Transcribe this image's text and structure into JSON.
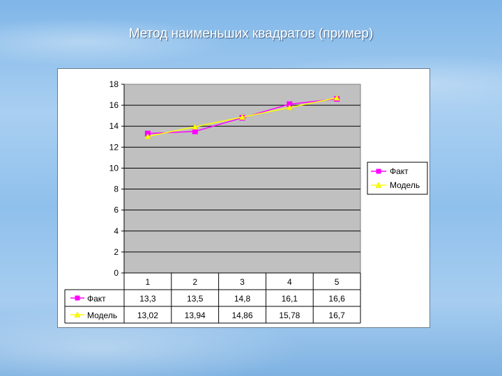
{
  "slide": {
    "title": "Метод наименьших квадратов (пример)"
  },
  "chart_data": {
    "type": "line",
    "title": "",
    "xlabel": "",
    "ylabel": "",
    "categories": [
      "1",
      "2",
      "3",
      "4",
      "5"
    ],
    "ylim": [
      0,
      18
    ],
    "yticks": [
      "0",
      "2",
      "4",
      "6",
      "8",
      "10",
      "12",
      "14",
      "16",
      "18"
    ],
    "grid": true,
    "legend_position": "right",
    "data_table": true,
    "series": [
      {
        "name": "Факт",
        "values": [
          13.3,
          13.5,
          14.8,
          16.1,
          16.6
        ],
        "labels": [
          "13,3",
          "13,5",
          "14,8",
          "16,1",
          "16,6"
        ],
        "color": "#ff00ff",
        "marker": "square"
      },
      {
        "name": "Модель",
        "values": [
          13.02,
          13.94,
          14.86,
          15.78,
          16.7
        ],
        "labels": [
          "13,02",
          "13,94",
          "14,86",
          "15,78",
          "16,7"
        ],
        "color": "#ffff00",
        "marker": "triangle"
      }
    ],
    "plot_background": "#c0c0c0"
  }
}
